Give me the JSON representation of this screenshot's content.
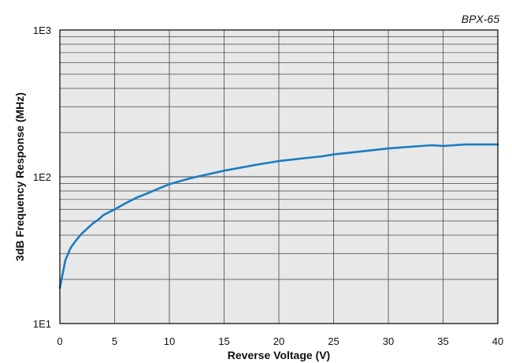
{
  "chart_data": {
    "type": "line",
    "title": "",
    "annotation": "BPX-65",
    "xlabel": "Reverse Voltage (V)",
    "ylabel": "3dB Frequency Response (MHz)",
    "xlim": [
      0,
      40
    ],
    "ylim": [
      10,
      1000
    ],
    "yscale": "log",
    "grid": true,
    "x_ticks": [
      0,
      5,
      10,
      15,
      20,
      25,
      30,
      35,
      40
    ],
    "x_tick_labels": [
      "0",
      "5",
      "10",
      "15",
      "20",
      "25",
      "30",
      "35",
      "40"
    ],
    "y_ticks": [
      10,
      100,
      1000
    ],
    "y_tick_labels": [
      "1E1",
      "1E2",
      "1E3"
    ],
    "colors": {
      "line": "#1a7cc1",
      "plot_bg": "#e8e8e8",
      "grid": "#444444"
    },
    "series": [
      {
        "name": "",
        "x": [
          0,
          0.5,
          1,
          1.5,
          2,
          3,
          3.5,
          4,
          5,
          6,
          7,
          8,
          9,
          10,
          12,
          15,
          18,
          20,
          22,
          24,
          25,
          28,
          30,
          32,
          34,
          35,
          37,
          40
        ],
        "y": [
          17.5,
          27,
          33,
          37,
          41,
          48,
          51,
          55,
          60,
          66,
          72,
          77,
          83,
          89,
          98,
          110,
          121,
          128,
          133,
          138,
          142,
          150,
          156,
          160,
          164,
          162,
          166,
          166
        ]
      }
    ]
  }
}
